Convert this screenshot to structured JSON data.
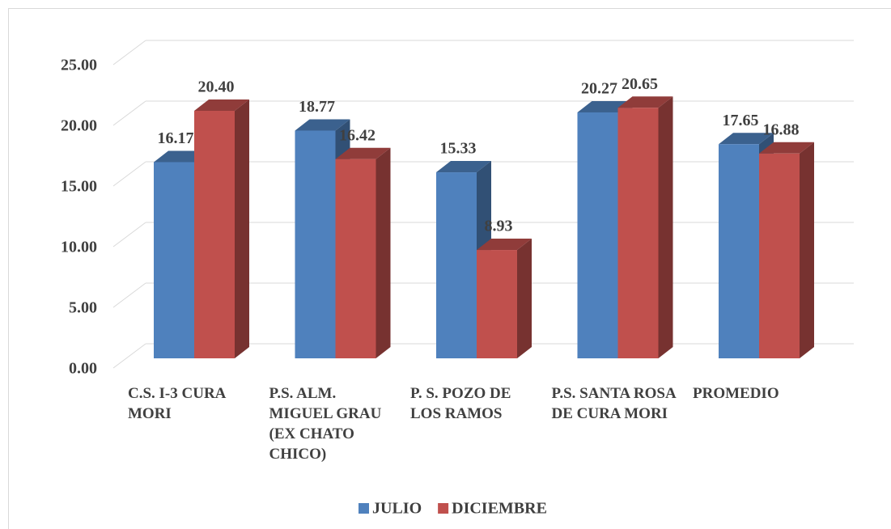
{
  "chart_data": {
    "type": "bar3d",
    "categories": [
      "C.S. I-3 CURA MORI",
      "P.S. ALM. MIGUEL GRAU (EX CHATO CHICO)",
      "P. S. POZO DE LOS RAMOS",
      "P.S. SANTA ROSA DE CURA MORI",
      "PROMEDIO"
    ],
    "series": [
      {
        "name": "JULIO",
        "color": "#4f81bd",
        "values": [
          16.17,
          18.77,
          15.33,
          20.27,
          17.65
        ],
        "value_labels": [
          "16.17",
          "18.77",
          "15.33",
          "20.27",
          "17.65"
        ]
      },
      {
        "name": "DICIEMBRE",
        "color": "#c0504d",
        "values": [
          20.4,
          16.42,
          8.93,
          20.65,
          16.88
        ],
        "value_labels": [
          "20.40",
          "16.42",
          "8.93",
          "20.65",
          "16.88"
        ]
      }
    ],
    "ylim": [
      0,
      25
    ],
    "yticks": [
      {
        "value": 0,
        "label": "0.00"
      },
      {
        "value": 5,
        "label": "5.00"
      },
      {
        "value": 10,
        "label": "10.00"
      },
      {
        "value": 15,
        "label": "15.00"
      },
      {
        "value": 20,
        "label": "20.00"
      },
      {
        "value": 25,
        "label": "25.00"
      }
    ],
    "grid": true,
    "legend": "bottom"
  }
}
